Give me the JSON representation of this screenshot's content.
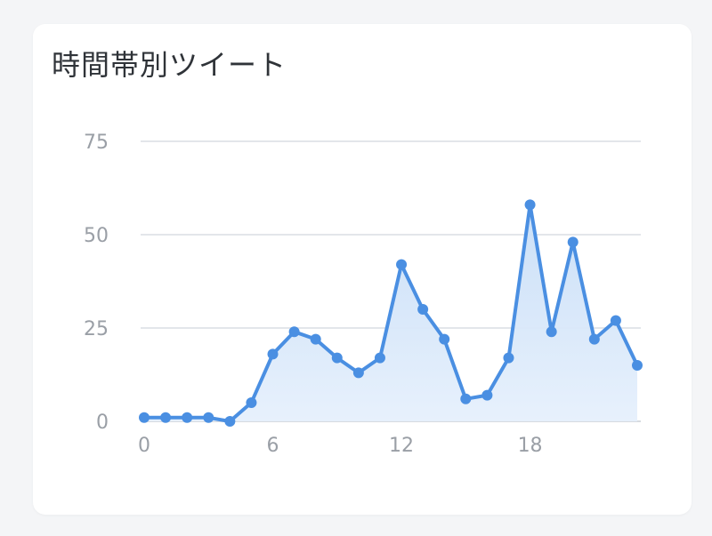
{
  "card": {
    "title": "時間帯別ツイート"
  },
  "colors": {
    "line": "#4a8fe2",
    "fill_top": "#c8def7",
    "fill_bottom": "#e6f0fc",
    "grid": "#e3e6ea",
    "axis_text": "#9a9fa6",
    "title_text": "#2f3338"
  },
  "chart_data": {
    "type": "area",
    "title": "時間帯別ツイート",
    "xlabel": "",
    "ylabel": "",
    "x": [
      0,
      1,
      2,
      3,
      4,
      5,
      6,
      7,
      8,
      9,
      10,
      11,
      12,
      13,
      14,
      15,
      16,
      17,
      18,
      19,
      20,
      21,
      22,
      23
    ],
    "series": [
      {
        "values": [
          1,
          1,
          1,
          1,
          0,
          5,
          18,
          24,
          22,
          17,
          13,
          17,
          42,
          30,
          22,
          6,
          7,
          17,
          58,
          24,
          48,
          22,
          27,
          15
        ]
      }
    ],
    "xticks": [
      "0",
      "6",
      "12",
      "18"
    ],
    "xtick_values": [
      0,
      6,
      12,
      18
    ],
    "yticks": [
      "0",
      "25",
      "50",
      "75"
    ],
    "ytick_values": [
      0,
      25,
      50,
      75
    ],
    "xlim": [
      0,
      23
    ],
    "ylim": [
      0,
      75
    ],
    "grid": true,
    "legend": "none"
  }
}
